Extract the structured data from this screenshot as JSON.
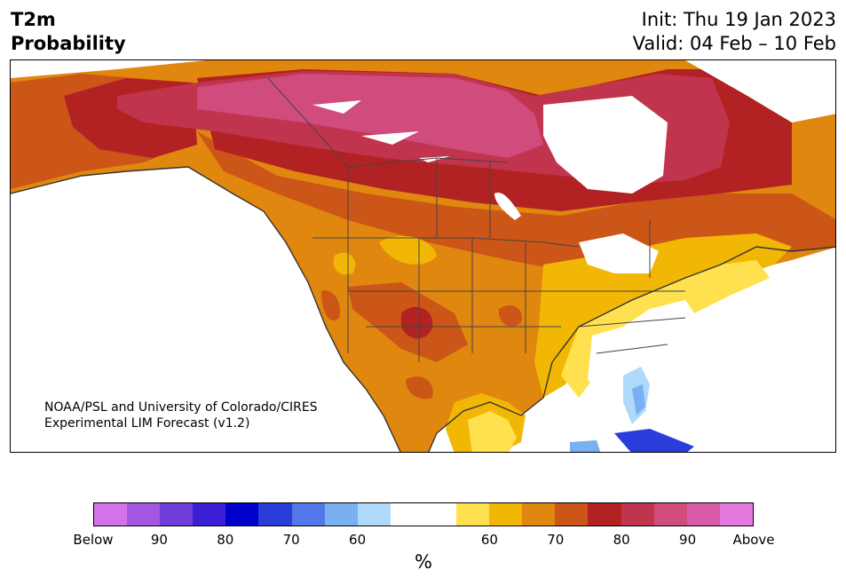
{
  "title": {
    "line1": "T2m",
    "line2": "Probability"
  },
  "info": {
    "init": "Init: Thu 19 Jan 2023",
    "valid": "Valid: 04 Feb – 10 Feb"
  },
  "credit": {
    "line1": "NOAA/PSL and University of Colorado/CIRES",
    "line2": "Experimental LIM Forecast (v1.2)"
  },
  "colorbar": {
    "colors": [
      "#d472ec",
      "#a455e2",
      "#6f3bd9",
      "#3b1fd6",
      "#0000cc",
      "#2a3ddb",
      "#5277e8",
      "#78b0f2",
      "#aed9fb",
      "#ffffff",
      "#ffffff",
      "#ffe14f",
      "#f2b705",
      "#e0870f",
      "#cc5518",
      "#b22222",
      "#c0344e",
      "#cf4c7c",
      "#d95aa8",
      "#e677de"
    ],
    "tick_labels": [
      "Below",
      "90",
      "80",
      "70",
      "60",
      "60",
      "70",
      "80",
      "90",
      "Above"
    ],
    "unit": "%"
  },
  "map_colors": {
    "bg": "#ffffff",
    "c60": "#ffe14f",
    "c65": "#f2b705",
    "c70": "#e0870f",
    "c75": "#cc5518",
    "c80": "#b22222",
    "c85": "#c0344e",
    "c90": "#cf4c7c",
    "cold60": "#aed9fb",
    "cold65": "#78b0f2",
    "cold75": "#2a3ddb"
  }
}
